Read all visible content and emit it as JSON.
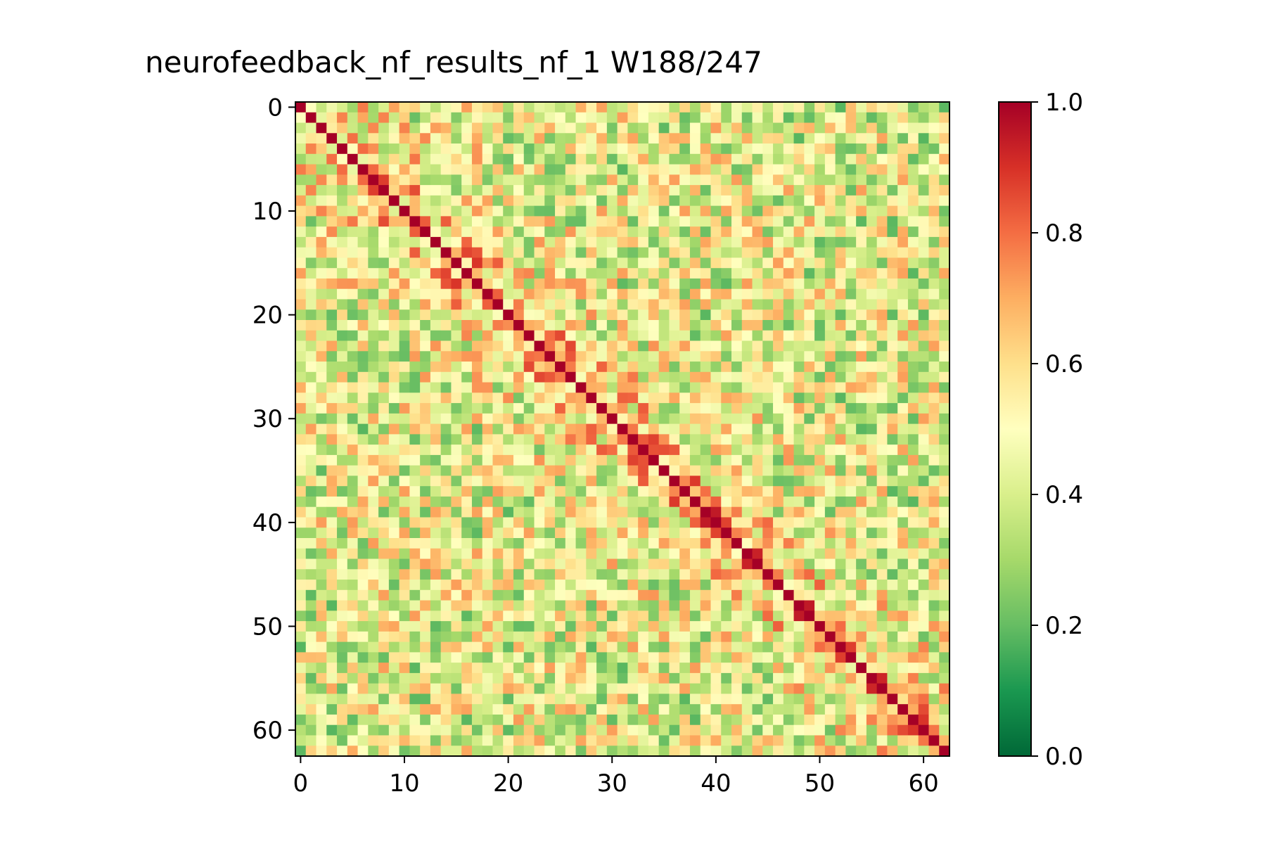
{
  "chart_data": {
    "type": "heatmap",
    "title": "neurofeedback_nf_results_nf_1 W188/247",
    "xlabel": "",
    "ylabel": "",
    "size": 63,
    "x_ticks": [
      0,
      10,
      20,
      30,
      40,
      50,
      60
    ],
    "y_ticks": [
      0,
      10,
      20,
      30,
      40,
      50,
      60
    ],
    "colorbar": {
      "colormap": "RdYlGn_r",
      "range": [
        0.0,
        1.0
      ],
      "ticks": [
        0.0,
        0.2,
        0.4,
        0.6,
        0.8,
        1.0
      ],
      "tick_labels": [
        "0.0",
        "0.2",
        "0.4",
        "0.6",
        "0.8",
        "1.0"
      ]
    },
    "diagonal_value": 1.0,
    "value_range": [
      0.0,
      1.0
    ],
    "grid": false,
    "legend": "colorbar-right"
  }
}
